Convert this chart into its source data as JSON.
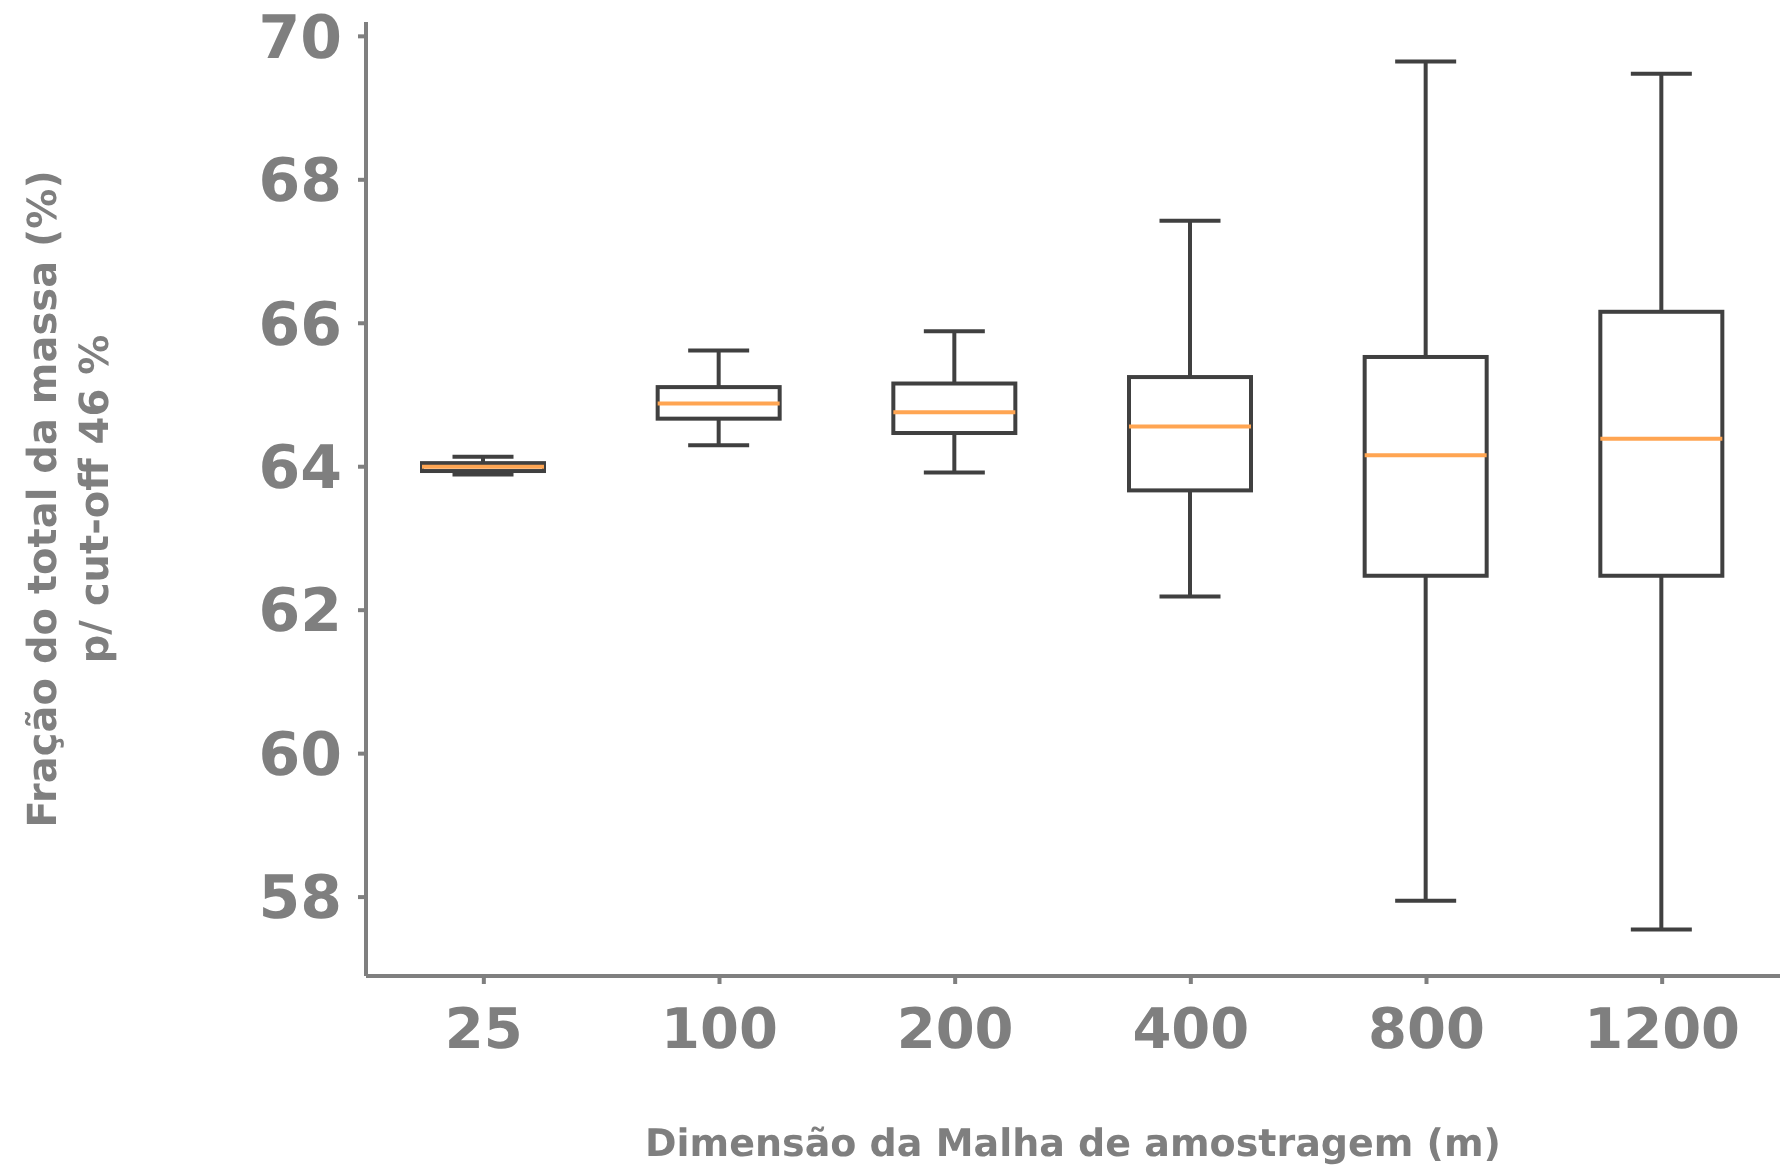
{
  "chart_data": {
    "type": "box",
    "xlabel": "Dimensão da Malha de amostragem (m)",
    "ylabel": "Fração do total da massa (%)\np/ cut-off 46 %",
    "categories": [
      "25",
      "100",
      "200",
      "400",
      "800",
      "1200"
    ],
    "ylim": [
      56.9,
      70.2
    ],
    "yticks": [
      58,
      60,
      62,
      64,
      66,
      68,
      70
    ],
    "grid": false,
    "series": [
      {
        "color": "#404040",
        "boxes": [
          {
            "low": 63.89,
            "q1": 63.94,
            "median": 64.0,
            "q3": 64.05,
            "high": 64.14
          },
          {
            "low": 64.3,
            "q1": 64.67,
            "median": 64.88,
            "q3": 65.11,
            "high": 65.62
          },
          {
            "low": 63.92,
            "q1": 64.47,
            "median": 64.76,
            "q3": 65.16,
            "high": 65.89
          },
          {
            "low": 62.19,
            "q1": 63.67,
            "median": 64.56,
            "q3": 65.25,
            "high": 67.43
          },
          {
            "low": 57.95,
            "q1": 62.48,
            "median": 64.16,
            "q3": 65.53,
            "high": 69.65
          },
          {
            "low": 57.55,
            "q1": 62.48,
            "median": 64.39,
            "q3": 66.16,
            "high": 69.48
          }
        ]
      }
    ]
  }
}
